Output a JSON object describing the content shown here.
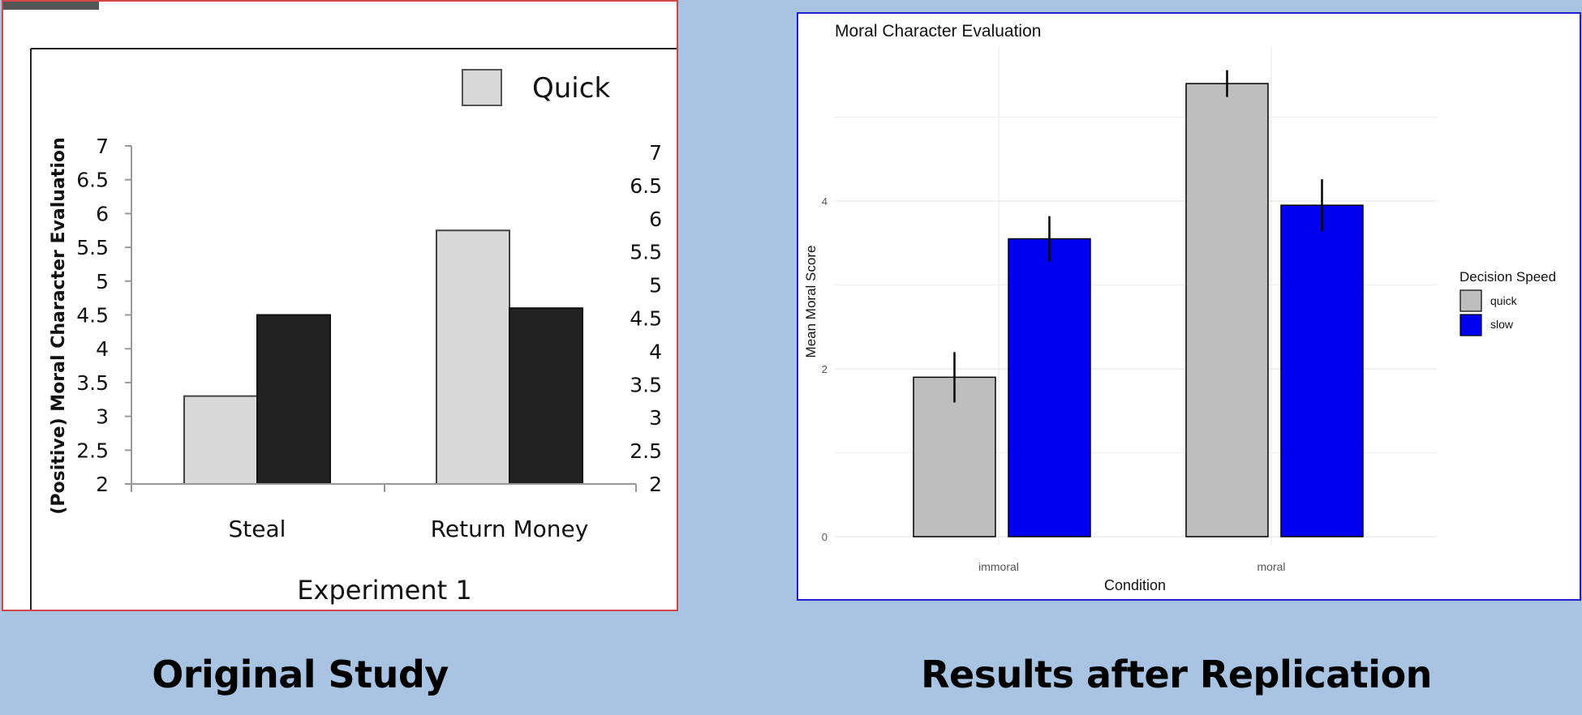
{
  "captions": {
    "left": "Original Study",
    "right": "Results after Replication"
  },
  "colors": {
    "background": "#a9c4e3",
    "quick_original": "#d9d9d9",
    "slow_original": "#222222",
    "quick_replication": "#bebebe",
    "slow_replication": "#0000ee",
    "left_border": "#d04545",
    "right_border": "#1f1fd0"
  },
  "chart_data": [
    {
      "type": "bar",
      "title": "",
      "subtitle": "Experiment 1",
      "xlabel": "",
      "ylabel": "(Positive) Moral Character Evaluation",
      "categories": [
        "Steal",
        "Return Money"
      ],
      "series": [
        {
          "name": "Quick",
          "values": [
            3.3,
            5.75
          ]
        },
        {
          "name": "",
          "values": [
            4.5,
            4.6
          ]
        }
      ],
      "ylim": [
        2,
        7
      ],
      "yticks": [
        "2",
        "2.5",
        "3",
        "3.5",
        "4",
        "4.5",
        "5",
        "5.5",
        "6",
        "6.5",
        "7"
      ],
      "legend": {
        "position": "top-right",
        "entries": [
          "Quick"
        ]
      },
      "grid": false
    },
    {
      "type": "bar",
      "title": "Moral Character Evaluation",
      "xlabel": "Condition",
      "ylabel": "Mean Moral Score",
      "categories": [
        "immoral",
        "moral"
      ],
      "series": [
        {
          "name": "quick",
          "values": [
            1.9,
            5.4
          ],
          "error": [
            0.3,
            0.16
          ]
        },
        {
          "name": "slow",
          "values": [
            3.55,
            3.95
          ],
          "error": [
            0.27,
            0.31
          ]
        }
      ],
      "ylim": [
        0,
        5.9
      ],
      "yticks": [
        "0",
        "2",
        "4"
      ],
      "legend": {
        "title": "Decision Speed",
        "position": "right",
        "entries": [
          "quick",
          "slow"
        ]
      },
      "grid": true
    }
  ]
}
